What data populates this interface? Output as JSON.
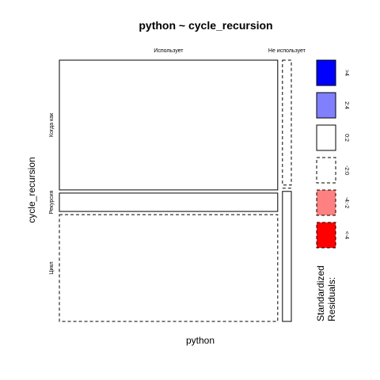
{
  "chart_data": {
    "type": "mosaic",
    "title": "python ~ cycle_recursion",
    "xlabel": "python",
    "ylabel": "cycle_recursion",
    "x_categories": [
      "Использует",
      "Не использует"
    ],
    "y_categories": [
      "Когда как",
      "Рекурсия",
      "Цикл"
    ],
    "x_proportions": [
      0.961,
      0.039
    ],
    "cells": [
      {
        "x": "Использует",
        "y": "Когда как",
        "proportion": 0.509,
        "residual_band": "0:2"
      },
      {
        "x": "Использует",
        "y": "Рекурсия",
        "proportion": 0.072,
        "residual_band": "0:2"
      },
      {
        "x": "Использует",
        "y": "Цикл",
        "proportion": 0.419,
        "residual_band": "-2:0"
      },
      {
        "x": "Не использует",
        "y": "Когда как",
        "proportion": 0.49,
        "residual_band": "-2:0"
      },
      {
        "x": "Не использует",
        "y": "Рекурсия",
        "proportion": 0.0,
        "residual_band": "-2:0"
      },
      {
        "x": "Не использует",
        "y": "Цикл",
        "proportion": 0.51,
        "residual_band": "0:2"
      }
    ],
    "legend": {
      "title": "Standardized\nResiduals:",
      "position": "right",
      "items": [
        {
          "label": ">4",
          "fill": "#0000ff",
          "dashed": false
        },
        {
          "label": "2:4",
          "fill": "#8080ff",
          "dashed": false
        },
        {
          "label": "0:2",
          "fill": "#ffffff",
          "dashed": false
        },
        {
          "label": "-2:0",
          "fill": "#ffffff",
          "dashed": true
        },
        {
          "label": "-4:-2",
          "fill": "#ff8080",
          "dashed": true
        },
        {
          "label": "<-4",
          "fill": "#ff0000",
          "dashed": true
        }
      ]
    }
  }
}
